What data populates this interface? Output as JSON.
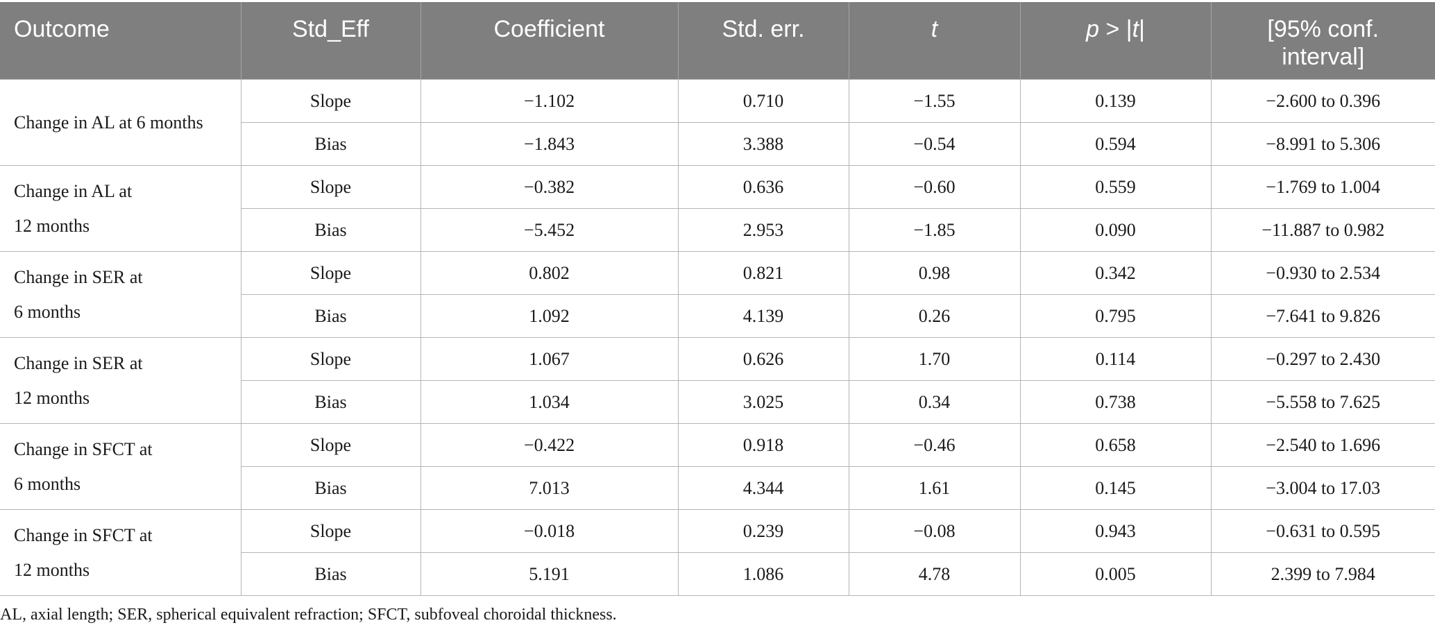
{
  "table": {
    "headers": {
      "outcome": "Outcome",
      "std_eff": "Std_Eff",
      "coefficient": "Coefficient",
      "std_err": "Std. err.",
      "t": "t",
      "p_prefix": "p",
      "p_mid": " > |",
      "p_t": "t",
      "p_end": "|",
      "ci_line1": "[95% conf.",
      "ci_line2": "interval]"
    },
    "groups": [
      {
        "outcome_line1": "Change in AL at 6 months",
        "outcome_line2": "",
        "rows": [
          {
            "std_eff": "Slope",
            "coefficient": "−1.102",
            "std_err": "0.710",
            "t": "−1.55",
            "p": "0.139",
            "ci": "−2.600 to 0.396"
          },
          {
            "std_eff": "Bias",
            "coefficient": "−1.843",
            "std_err": "3.388",
            "t": "−0.54",
            "p": "0.594",
            "ci": "−8.991 to 5.306"
          }
        ]
      },
      {
        "outcome_line1": "Change in AL at",
        "outcome_line2": "12 months",
        "rows": [
          {
            "std_eff": "Slope",
            "coefficient": "−0.382",
            "std_err": "0.636",
            "t": "−0.60",
            "p": "0.559",
            "ci": "−1.769 to 1.004"
          },
          {
            "std_eff": "Bias",
            "coefficient": "−5.452",
            "std_err": "2.953",
            "t": "−1.85",
            "p": "0.090",
            "ci": "−11.887 to 0.982"
          }
        ]
      },
      {
        "outcome_line1": "Change in SER at",
        "outcome_line2": "6 months",
        "rows": [
          {
            "std_eff": "Slope",
            "coefficient": "0.802",
            "std_err": "0.821",
            "t": "0.98",
            "p": "0.342",
            "ci": "−0.930 to 2.534"
          },
          {
            "std_eff": "Bias",
            "coefficient": "1.092",
            "std_err": "4.139",
            "t": "0.26",
            "p": "0.795",
            "ci": "−7.641 to 9.826"
          }
        ]
      },
      {
        "outcome_line1": "Change in SER at",
        "outcome_line2": "12 months",
        "rows": [
          {
            "std_eff": "Slope",
            "coefficient": "1.067",
            "std_err": "0.626",
            "t": "1.70",
            "p": "0.114",
            "ci": "−0.297 to 2.430"
          },
          {
            "std_eff": "Bias",
            "coefficient": "1.034",
            "std_err": "3.025",
            "t": "0.34",
            "p": "0.738",
            "ci": "−5.558 to 7.625"
          }
        ]
      },
      {
        "outcome_line1": "Change in SFCT at",
        "outcome_line2": "6 months",
        "rows": [
          {
            "std_eff": "Slope",
            "coefficient": "−0.422",
            "std_err": "0.918",
            "t": "−0.46",
            "p": "0.658",
            "ci": "−2.540 to 1.696"
          },
          {
            "std_eff": "Bias",
            "coefficient": "7.013",
            "std_err": "4.344",
            "t": "1.61",
            "p": "0.145",
            "ci": "−3.004 to 17.03"
          }
        ]
      },
      {
        "outcome_line1": "Change in SFCT at",
        "outcome_line2": "12 months",
        "rows": [
          {
            "std_eff": "Slope",
            "coefficient": "−0.018",
            "std_err": "0.239",
            "t": "−0.08",
            "p": "0.943",
            "ci": "−0.631 to 0.595"
          },
          {
            "std_eff": "Bias",
            "coefficient": "5.191",
            "std_err": "1.086",
            "t": "4.78",
            "p": "0.005",
            "ci": "2.399 to 7.984"
          }
        ]
      }
    ]
  },
  "footnote": "AL, axial length; SER, spherical equivalent refraction; SFCT, subfoveal choroidal thickness."
}
